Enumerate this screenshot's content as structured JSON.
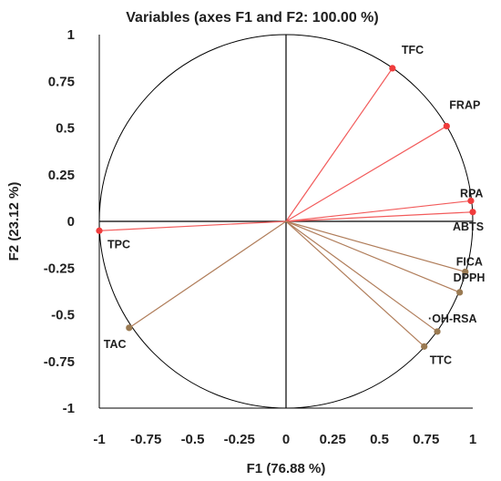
{
  "chart_data": {
    "type": "scatter",
    "title": "Variables (axes F1 and F2: 100.00 %)",
    "xlabel": "F1 (76.88 %)",
    "ylabel": "F2 (23.12 %)",
    "xlim": [
      -1,
      1
    ],
    "ylim": [
      -1,
      1
    ],
    "xticks": [
      "-1",
      "-0.75",
      "-0.5",
      "-0.25",
      "0",
      "0.25",
      "0.5",
      "0.75",
      "1"
    ],
    "yticks": [
      "1",
      "0.75",
      "0.5",
      "0.25",
      "0",
      "-0.25",
      "-0.5",
      "-0.75",
      "-1"
    ],
    "unit_circle": true,
    "grid": false,
    "colors": {
      "active": "#f25b5b",
      "supplementary": "#b07d5a",
      "active_marker": "#f03c3c",
      "supplementary_marker": "#9a7a52",
      "circle": "#000000"
    },
    "points": [
      {
        "name": "TFC",
        "x": 0.57,
        "y": 0.82,
        "group": "active"
      },
      {
        "name": "FRAP",
        "x": 0.86,
        "y": 0.51,
        "group": "active"
      },
      {
        "name": "RPA",
        "x": 0.99,
        "y": 0.11,
        "group": "active"
      },
      {
        "name": "ABTS",
        "x": 1.0,
        "y": 0.05,
        "group": "active"
      },
      {
        "name": "TPC",
        "x": -1.0,
        "y": -0.05,
        "group": "active"
      },
      {
        "name": "FICA",
        "x": 0.96,
        "y": -0.27,
        "group": "supplementary"
      },
      {
        "name": "DPPH",
        "x": 0.93,
        "y": -0.38,
        "group": "supplementary"
      },
      {
        "name": "·OH-RSA",
        "x": 0.81,
        "y": -0.59,
        "group": "supplementary"
      },
      {
        "name": "TTC",
        "x": 0.74,
        "y": -0.67,
        "group": "supplementary"
      },
      {
        "name": "TAC",
        "x": -0.84,
        "y": -0.57,
        "group": "supplementary"
      }
    ]
  }
}
